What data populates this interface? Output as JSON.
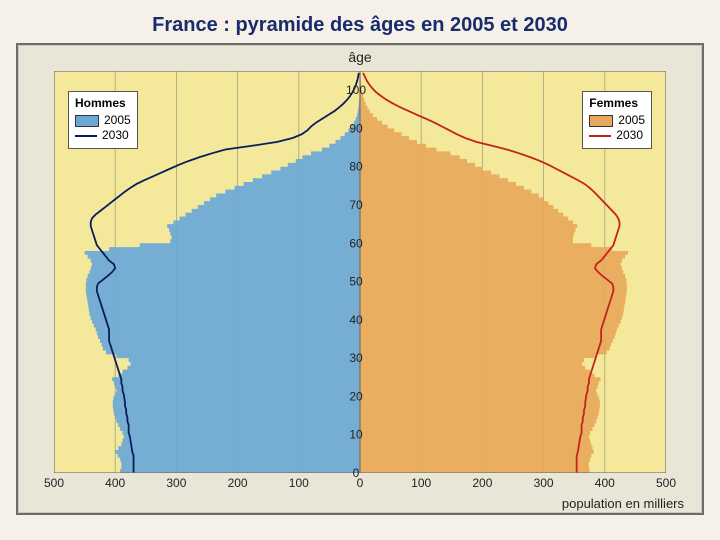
{
  "title": "France : pyramide des âges en 2005 et 2030",
  "axis": {
    "age_label": "âge",
    "pop_label": "population en milliers",
    "age_max": 105,
    "age_ticks": [
      0,
      10,
      20,
      30,
      40,
      50,
      60,
      70,
      80,
      90,
      100
    ],
    "pop_max": 500,
    "pop_ticks": [
      0,
      100,
      200,
      300,
      400,
      500
    ]
  },
  "colors": {
    "plot_bg": "#f4e99a",
    "grid": "#6f6f6f",
    "outer_border": "#6b6b6b",
    "male_fill_2005": "#6aa8d8",
    "male_line_2030": "#0b1c5e",
    "female_fill_2005": "#e8a85b",
    "female_line_2030": "#c4221f",
    "tick_text": "#222222",
    "legend_bg": "#ffffff"
  },
  "legend": {
    "hommes": {
      "title": "Hommes",
      "a": "2005",
      "b": "2030"
    },
    "femmes": {
      "title": "Femmes",
      "a": "2005",
      "b": "2030"
    }
  },
  "pyramid_comment": "values in thousands per single-year age, estimated from chart",
  "male_2005": [
    392,
    390,
    390,
    392,
    396,
    400,
    395,
    390,
    388,
    386,
    388,
    392,
    395,
    398,
    400,
    402,
    403,
    404,
    404,
    403,
    400,
    398,
    400,
    402,
    405,
    395,
    388,
    380,
    375,
    378,
    398,
    415,
    420,
    422,
    425,
    428,
    430,
    432,
    435,
    438,
    440,
    442,
    443,
    444,
    445,
    446,
    447,
    448,
    448,
    448,
    447,
    445,
    442,
    440,
    438,
    440,
    445,
    450,
    410,
    360,
    310,
    308,
    310,
    312,
    315,
    305,
    295,
    285,
    275,
    265,
    255,
    245,
    235,
    220,
    205,
    190,
    175,
    160,
    145,
    130,
    118,
    105,
    94,
    80,
    62,
    50,
    40,
    32,
    25,
    19,
    14,
    10,
    7,
    5,
    3.5,
    2.5,
    1.8,
    1.2,
    0.8,
    0.5,
    0.3,
    0.18,
    0.1,
    0.05,
    0.02
  ],
  "male_2030": [
    370,
    370,
    370,
    370,
    370,
    372,
    373,
    374,
    375,
    376,
    378,
    378,
    378,
    380,
    380,
    382,
    382,
    384,
    384,
    385,
    386,
    388,
    388,
    390,
    390,
    392,
    394,
    396,
    398,
    400,
    402,
    404,
    406,
    408,
    410,
    410,
    410,
    410,
    412,
    414,
    416,
    418,
    420,
    422,
    424,
    426,
    428,
    430,
    430,
    428,
    420,
    412,
    405,
    400,
    402,
    410,
    415,
    420,
    425,
    430,
    432,
    434,
    436,
    438,
    440,
    440,
    438,
    432,
    424,
    416,
    408,
    400,
    392,
    384,
    375,
    365,
    352,
    338,
    324,
    310,
    296,
    280,
    262,
    242,
    220,
    175,
    135,
    110,
    95,
    86,
    80,
    72,
    62,
    52,
    42,
    34,
    27,
    21,
    16,
    12,
    9,
    6.5,
    4.5,
    3,
    2
  ],
  "female_2005": [
    375,
    374,
    374,
    376,
    378,
    382,
    380,
    378,
    376,
    374,
    376,
    380,
    383,
    386,
    388,
    390,
    391,
    392,
    392,
    391,
    388,
    386,
    388,
    390,
    393,
    383,
    376,
    368,
    363,
    366,
    386,
    403,
    408,
    410,
    413,
    416,
    418,
    420,
    423,
    426,
    428,
    430,
    431,
    432,
    433,
    434,
    435,
    436,
    436,
    436,
    435,
    433,
    430,
    428,
    426,
    428,
    433,
    438,
    412,
    378,
    348,
    348,
    350,
    352,
    355,
    348,
    340,
    332,
    324,
    316,
    308,
    300,
    292,
    280,
    268,
    255,
    242,
    228,
    214,
    200,
    188,
    175,
    163,
    148,
    125,
    108,
    93,
    80,
    68,
    56,
    45,
    36,
    28,
    21,
    16,
    12,
    9,
    7,
    5,
    3.6,
    2.6,
    1.8,
    1.2,
    0.8,
    0.4
  ],
  "female_2030": [
    354,
    354,
    354,
    354,
    354,
    356,
    357,
    358,
    359,
    360,
    362,
    362,
    362,
    364,
    364,
    366,
    366,
    368,
    368,
    369,
    370,
    372,
    372,
    374,
    374,
    376,
    378,
    380,
    382,
    384,
    386,
    388,
    390,
    392,
    394,
    394,
    394,
    394,
    396,
    398,
    400,
    402,
    404,
    406,
    408,
    410,
    412,
    414,
    414,
    412,
    404,
    396,
    389,
    384,
    386,
    394,
    399,
    404,
    409,
    414,
    416,
    418,
    420,
    422,
    424,
    424,
    422,
    418,
    412,
    406,
    400,
    394,
    388,
    382,
    375,
    367,
    356,
    344,
    332,
    320,
    308,
    294,
    278,
    260,
    240,
    215,
    190,
    172,
    158,
    146,
    134,
    122,
    108,
    94,
    80,
    66,
    54,
    43,
    34,
    26,
    20,
    15,
    11,
    8,
    5
  ]
}
